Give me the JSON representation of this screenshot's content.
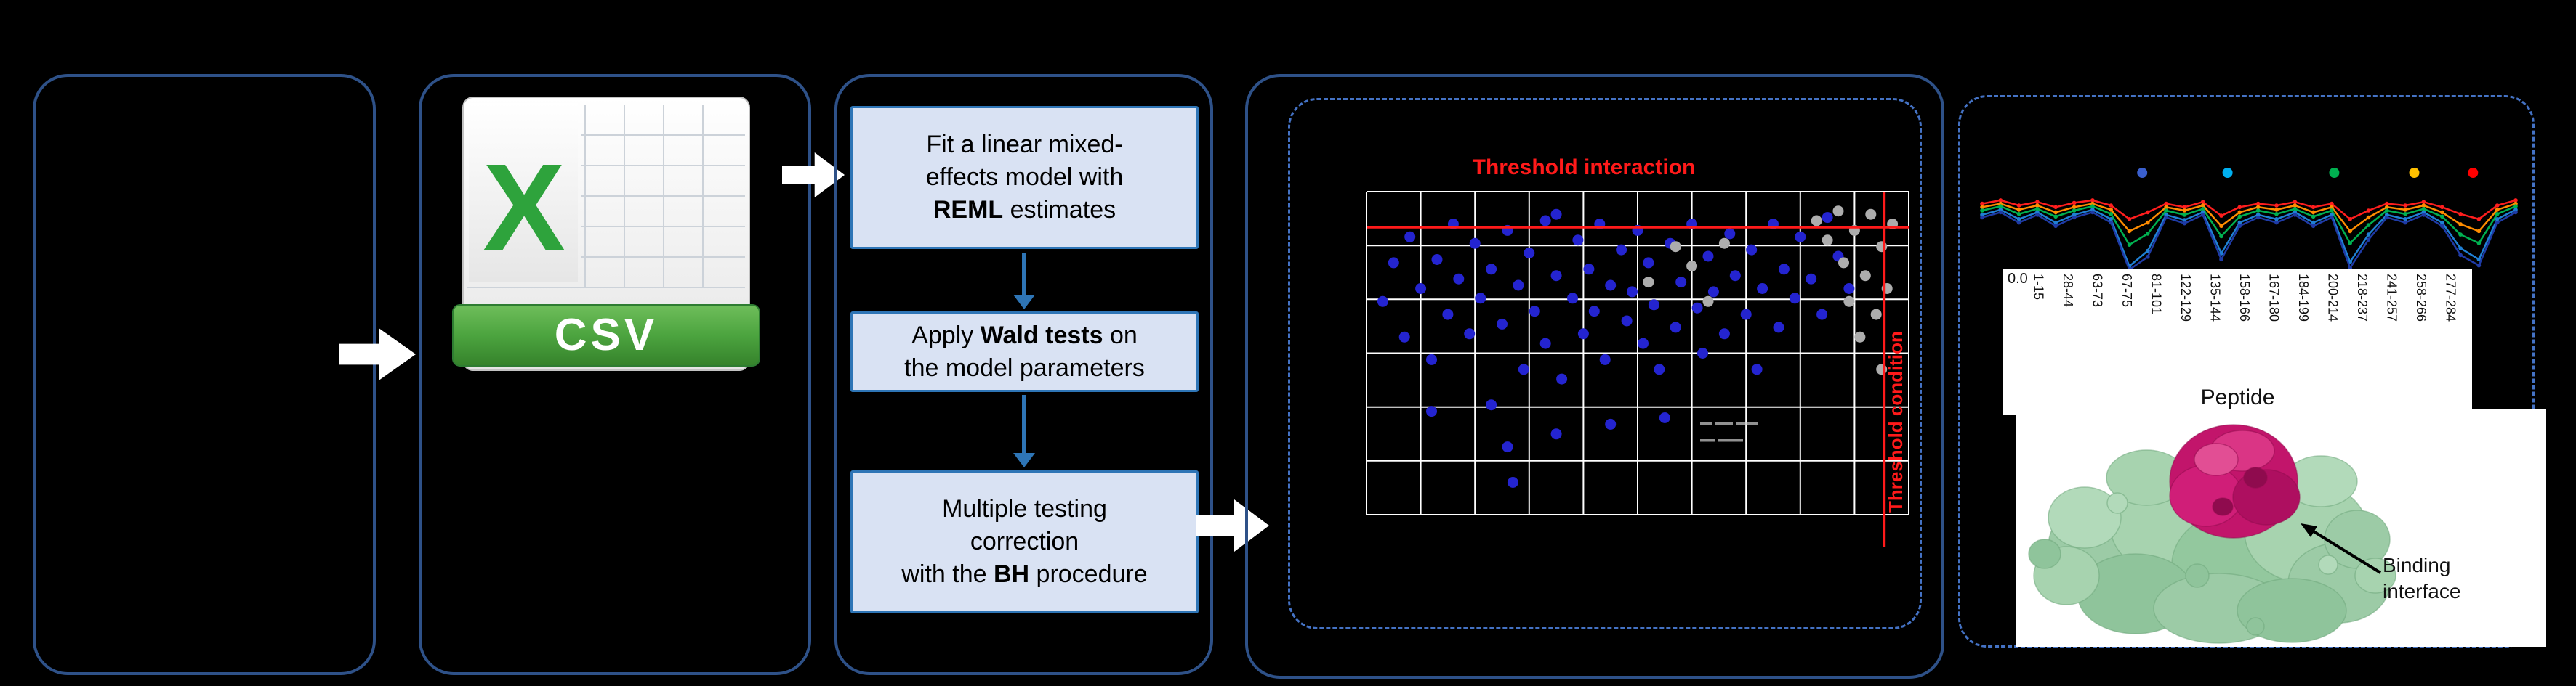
{
  "figure": {
    "background": "#000000",
    "solid_border_color": "#2E5188",
    "dashed_border_color": "#4472C4",
    "flow_arrow_color": "#FFFFFF"
  },
  "csv_panel": {
    "icon_letter": "X",
    "icon_label": "CSV",
    "icon_green": "#2EA33C"
  },
  "model_panel": {
    "steps": [
      {
        "lines": [
          [
            {
              "t": "Fit a linear mixed-"
            }
          ],
          [
            {
              "t": "effects model with"
            }
          ],
          [
            {
              "t": "REML",
              "b": true
            },
            {
              "t": " estimates"
            }
          ]
        ]
      },
      {
        "lines": [
          [
            {
              "t": "Apply "
            },
            {
              "t": "Wald tests",
              "b": true
            },
            {
              "t": " on"
            }
          ],
          [
            {
              "t": "the model parameters"
            }
          ]
        ]
      },
      {
        "lines": [
          [
            {
              "t": "Multiple testing"
            }
          ],
          [
            {
              "t": "correction"
            }
          ],
          [
            {
              "t": "with the "
            },
            {
              "t": "BH",
              "b": true
            },
            {
              "t": " procedure"
            }
          ]
        ]
      }
    ]
  },
  "chart_data": [
    {
      "id": "interaction-threshold-scatter",
      "type": "scatter",
      "annotations": {
        "top": "Threshold interaction",
        "right": "Threshold condition"
      },
      "threshold_color": "#FF1A1A",
      "grid": {
        "cols": 10,
        "rows": 6,
        "color": "#FFFFFF",
        "on": true
      },
      "threshold_y_pct": 11,
      "threshold_x_pct": 95.5,
      "series": [
        {
          "name": "significant-peptides",
          "color": "#2424D0",
          "points": [
            [
              3,
              34
            ],
            [
              5,
              22
            ],
            [
              7,
              45
            ],
            [
              8,
              14
            ],
            [
              10,
              30
            ],
            [
              12,
              52
            ],
            [
              12,
              68
            ],
            [
              13,
              21
            ],
            [
              15,
              38
            ],
            [
              16,
              10
            ],
            [
              17,
              27
            ],
            [
              19,
              44
            ],
            [
              20,
              16
            ],
            [
              21,
              33
            ],
            [
              23,
              66
            ],
            [
              23,
              24
            ],
            [
              25,
              41
            ],
            [
              26,
              12
            ],
            [
              26,
              79
            ],
            [
              27,
              90
            ],
            [
              28,
              29
            ],
            [
              29,
              55
            ],
            [
              30,
              19
            ],
            [
              31,
              37
            ],
            [
              33,
              9
            ],
            [
              33,
              47
            ],
            [
              35,
              7
            ],
            [
              35,
              26
            ],
            [
              35,
              75
            ],
            [
              36,
              58
            ],
            [
              38,
              33
            ],
            [
              39,
              15
            ],
            [
              40,
              44
            ],
            [
              41,
              24
            ],
            [
              42,
              37
            ],
            [
              43,
              10
            ],
            [
              44,
              52
            ],
            [
              45,
              29
            ],
            [
              45,
              72
            ],
            [
              47,
              18
            ],
            [
              48,
              40
            ],
            [
              49,
              31
            ],
            [
              50,
              12
            ],
            [
              51,
              47
            ],
            [
              52,
              22
            ],
            [
              53,
              35
            ],
            [
              54,
              55
            ],
            [
              55,
              70
            ],
            [
              56,
              16
            ],
            [
              57,
              42
            ],
            [
              58,
              28
            ],
            [
              60,
              10
            ],
            [
              61,
              36
            ],
            [
              62,
              50
            ],
            [
              63,
              20
            ],
            [
              64,
              31
            ],
            [
              66,
              44
            ],
            [
              67,
              13
            ],
            [
              68,
              26
            ],
            [
              70,
              38
            ],
            [
              71,
              18
            ],
            [
              72,
              55
            ],
            [
              73,
              30
            ],
            [
              75,
              10
            ],
            [
              76,
              42
            ],
            [
              77,
              24
            ],
            [
              79,
              33
            ],
            [
              80,
              14
            ],
            [
              82,
              27
            ],
            [
              84,
              38
            ],
            [
              85,
              8
            ],
            [
              87,
              20
            ],
            [
              89,
              30
            ]
          ]
        },
        {
          "name": "non-significant-peptides",
          "color": "#ADADAD",
          "points": [
            [
              52,
              28
            ],
            [
              57,
              17
            ],
            [
              60,
              23
            ],
            [
              63,
              34
            ],
            [
              66,
              16
            ],
            [
              83,
              9
            ],
            [
              85,
              15
            ],
            [
              87,
              6
            ],
            [
              88,
              22
            ],
            [
              89,
              34
            ],
            [
              90,
              12
            ],
            [
              91,
              45
            ],
            [
              92,
              26
            ],
            [
              93,
              7
            ],
            [
              94,
              38
            ],
            [
              95,
              17
            ],
            [
              95,
              55
            ],
            [
              96,
              30
            ],
            [
              97,
              10
            ]
          ]
        }
      ]
    },
    {
      "id": "deuterium-uptake-per-peptide",
      "type": "line",
      "xlabel": "Peptide",
      "ymin_tick": "0.0",
      "categories": [
        "1-15",
        "28-44",
        "63-73",
        "67-75",
        "81-101",
        "122-129",
        "135-144",
        "158-166",
        "167-180",
        "184-199",
        "200-214",
        "218-237",
        "241-257",
        "258-266",
        "277-284"
      ],
      "legend_dot_colors": [
        "#3A5FCD",
        "#00B0F0",
        "#00B050",
        "#FFC000",
        "#FF0000"
      ],
      "legend_dot_x": [
        0.3,
        0.46,
        0.66,
        0.81,
        0.92
      ],
      "series": [
        {
          "name": "series-red",
          "color": "#FF1E1E",
          "values": [
            0.2,
            0.16,
            0.22,
            0.18,
            0.24,
            0.19,
            0.16,
            0.22,
            0.38,
            0.3,
            0.2,
            0.24,
            0.18,
            0.34,
            0.24,
            0.2,
            0.22,
            0.18,
            0.24,
            0.2,
            0.38,
            0.28,
            0.2,
            0.22,
            0.18,
            0.24,
            0.32,
            0.38,
            0.22,
            0.16
          ]
        },
        {
          "name": "series-orange",
          "color": "#FF8C00",
          "values": [
            0.24,
            0.2,
            0.27,
            0.22,
            0.3,
            0.24,
            0.2,
            0.27,
            0.52,
            0.42,
            0.24,
            0.28,
            0.22,
            0.46,
            0.3,
            0.24,
            0.27,
            0.22,
            0.3,
            0.24,
            0.52,
            0.36,
            0.24,
            0.27,
            0.22,
            0.3,
            0.44,
            0.52,
            0.27,
            0.2
          ]
        },
        {
          "name": "series-green",
          "color": "#00B050",
          "values": [
            0.28,
            0.23,
            0.32,
            0.26,
            0.35,
            0.28,
            0.23,
            0.32,
            0.68,
            0.55,
            0.28,
            0.33,
            0.26,
            0.58,
            0.35,
            0.28,
            0.32,
            0.26,
            0.35,
            0.28,
            0.66,
            0.45,
            0.28,
            0.32,
            0.26,
            0.35,
            0.56,
            0.66,
            0.32,
            0.23
          ]
        },
        {
          "name": "series-blue",
          "color": "#1F7FD4",
          "values": [
            0.33,
            0.27,
            0.38,
            0.3,
            0.42,
            0.33,
            0.27,
            0.38,
            0.93,
            0.75,
            0.33,
            0.39,
            0.3,
            0.78,
            0.42,
            0.33,
            0.38,
            0.3,
            0.42,
            0.33,
            0.88,
            0.56,
            0.33,
            0.38,
            0.3,
            0.42,
            0.72,
            0.85,
            0.38,
            0.27
          ]
        },
        {
          "name": "series-navy",
          "color": "#1F3BA6",
          "values": [
            0.36,
            0.3,
            0.42,
            0.33,
            0.46,
            0.36,
            0.3,
            0.42,
            0.97,
            0.82,
            0.36,
            0.43,
            0.33,
            0.85,
            0.46,
            0.36,
            0.42,
            0.33,
            0.46,
            0.36,
            0.95,
            0.62,
            0.36,
            0.42,
            0.33,
            0.46,
            0.8,
            0.92,
            0.42,
            0.3
          ]
        }
      ]
    }
  ],
  "structure_panel": {
    "axis_tick": "0.0",
    "xlabel": "Peptide",
    "caption_lines": [
      "Binding",
      "interface"
    ],
    "body_color": "#9CCBA6",
    "site_color": "#C2156B"
  }
}
